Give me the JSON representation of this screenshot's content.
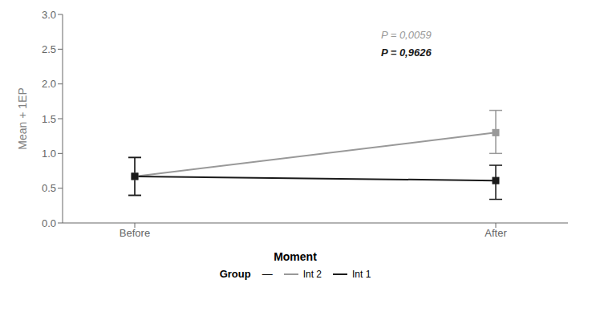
{
  "chart_data": {
    "type": "line",
    "categories": [
      "Before",
      "After"
    ],
    "series": [
      {
        "name": "Int 2",
        "color": "#999999",
        "marker": "square",
        "values": [
          0.67,
          1.3
        ],
        "error_lower": [
          0.28,
          0.3
        ],
        "error_upper": [
          0.28,
          0.32
        ]
      },
      {
        "name": "Int 1",
        "color": "#1a1a1a",
        "marker": "square",
        "values": [
          0.67,
          0.61
        ],
        "error_lower": [
          0.27,
          0.27
        ],
        "error_upper": [
          0.27,
          0.22
        ]
      }
    ],
    "ylabel": "Mean + 1EP",
    "xlabel": "Moment",
    "ylim": [
      0.0,
      3.0
    ],
    "yticks": [
      {
        "value": 0.0,
        "label": "0.0"
      },
      0.5,
      {
        "value": 1.0,
        "label": "1.0"
      },
      1.5,
      {
        "value": 2.0,
        "label": "2.0"
      },
      2.5,
      {
        "value": 3.0,
        "label": "3.0"
      }
    ],
    "annotations": [
      {
        "text": "P = 0,0059",
        "color": "#999999"
      },
      {
        "text": "P = 0,9626",
        "color": "#1a1a1a"
      },
      {
        "text": "Group"
      },
      {
        "text": "—"
      }
    ],
    "grid": false,
    "legend": "bottom"
  }
}
